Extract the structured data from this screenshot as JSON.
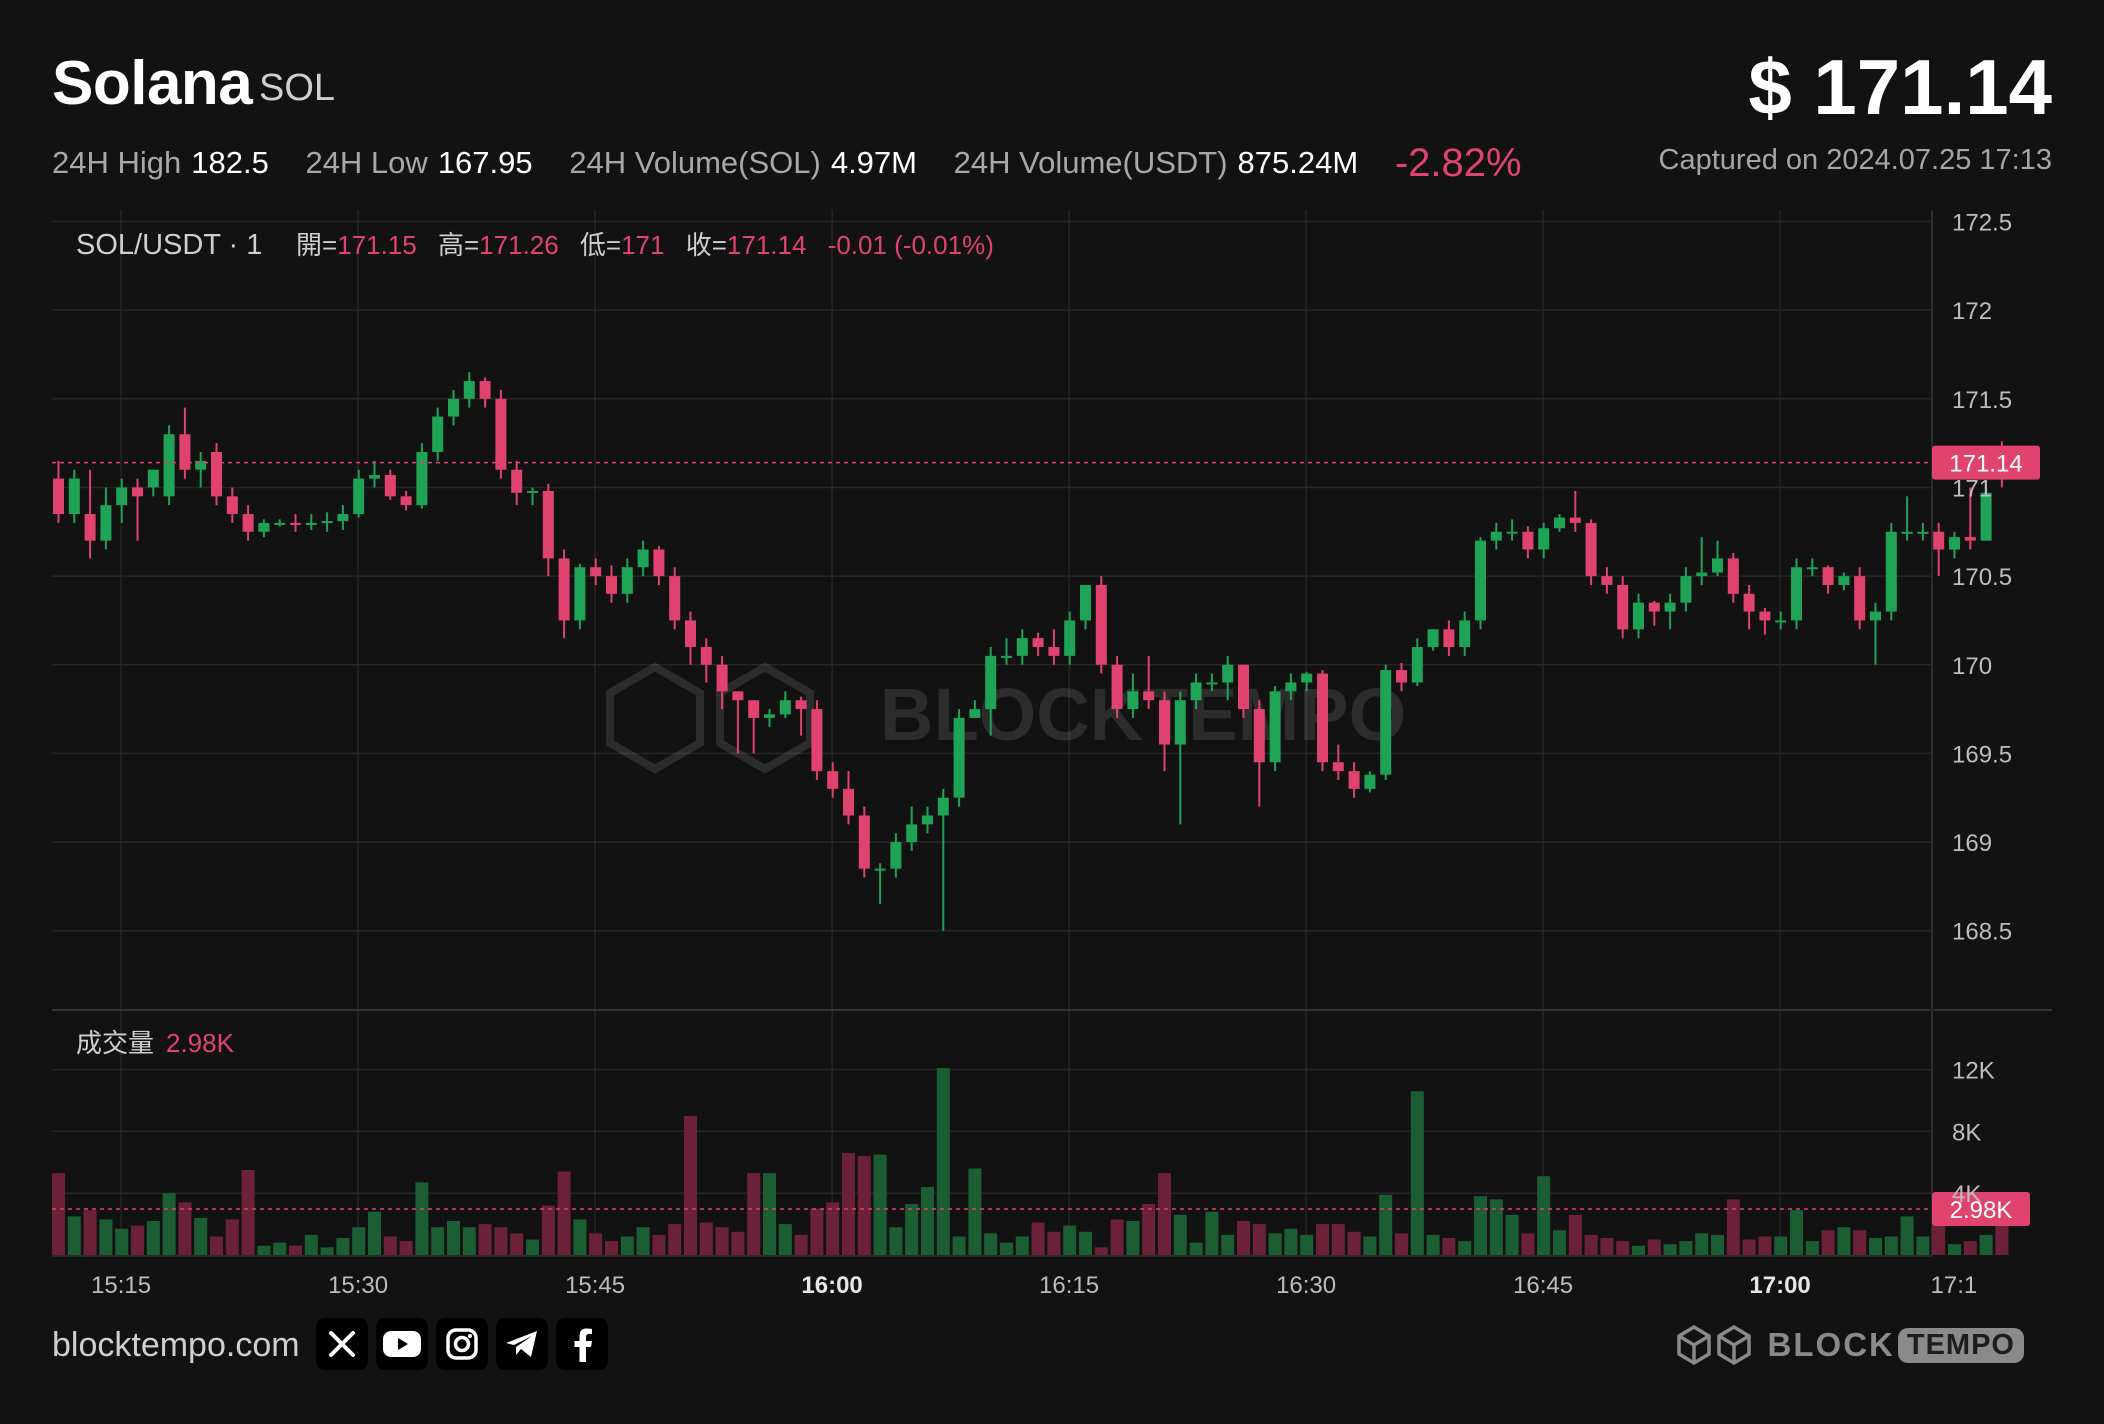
{
  "header": {
    "name": "Solana",
    "symbol": "SOL",
    "price": "$ 171.14",
    "stats": [
      {
        "label": "24H High",
        "value": "182.5"
      },
      {
        "label": "24H Low",
        "value": "167.95"
      },
      {
        "label": "24H Volume(SOL)",
        "value": "4.97M"
      },
      {
        "label": "24H Volume(USDT)",
        "value": "875.24M"
      }
    ],
    "change": "-2.82%",
    "captured": "Captured on 2024.07.25 17:13"
  },
  "legend": {
    "pair": "SOL/USDT · 1",
    "open_label": "開=",
    "open": "171.15",
    "high_label": "高=",
    "high": "171.26",
    "low_label": "低=",
    "low": "171",
    "close_label": "收=",
    "close": "171.14",
    "change": "-0.01 (-0.01%)"
  },
  "volume_legend": {
    "label": "成交量",
    "value": "2.98K"
  },
  "colors": {
    "up": "#1fa356",
    "down": "#e0436e",
    "up_volume": "#1c5e33",
    "down_volume": "#6b2239",
    "background": "#121212",
    "grid": "#262626"
  },
  "footer": {
    "site": "blocktempo.com",
    "social_icons": [
      "x-icon",
      "youtube-icon",
      "instagram-icon",
      "telegram-icon",
      "facebook-icon"
    ],
    "brand_block": "BLOCK",
    "brand_tempo": "TEMPO"
  },
  "watermark": "BLOCKTEMPO",
  "chart_data": {
    "type": "candlestick",
    "price_axis": {
      "ticks": [
        168.5,
        169,
        169.5,
        170,
        170.5,
        171,
        171.5,
        172,
        172.5
      ],
      "range": [
        168.0,
        172.5
      ]
    },
    "volume_axis": {
      "tick_labels": [
        "4K",
        "8K",
        "12K"
      ],
      "tick_values": [
        4000,
        8000,
        12000
      ],
      "max": 14800
    },
    "time_labels": [
      "15:15",
      "15:30",
      "15:45",
      "16:00",
      "16:15",
      "16:30",
      "16:45",
      "17:00",
      "17:1"
    ],
    "bold_time_labels": [
      "16:00",
      "17:00"
    ],
    "time_label_indices": [
      2,
      17,
      32,
      47,
      62,
      77,
      92,
      107,
      118
    ],
    "last_price_label": "171.14",
    "last_volume_label": "2.98K",
    "last_volume": 2980,
    "candles": [
      [
        171.05,
        170.85,
        171.15,
        170.8,
        5300
      ],
      [
        170.85,
        171.05,
        171.1,
        170.8,
        2500
      ],
      [
        170.85,
        170.7,
        171.1,
        170.6,
        2900
      ],
      [
        170.7,
        170.9,
        171.0,
        170.65,
        2300
      ],
      [
        170.9,
        171.0,
        171.05,
        170.8,
        1700
      ],
      [
        171.0,
        170.95,
        171.05,
        170.7,
        1900
      ],
      [
        171.0,
        171.1,
        171.1,
        170.95,
        2200
      ],
      [
        170.95,
        171.3,
        171.35,
        170.9,
        4000
      ],
      [
        171.3,
        171.1,
        171.45,
        171.05,
        3400
      ],
      [
        171.1,
        171.15,
        171.2,
        171.0,
        2400
      ],
      [
        171.2,
        170.95,
        171.25,
        170.9,
        1200
      ],
      [
        170.95,
        170.85,
        171.0,
        170.8,
        2300
      ],
      [
        170.85,
        170.75,
        170.9,
        170.7,
        5500
      ],
      [
        170.75,
        170.8,
        170.82,
        170.72,
        600
      ],
      [
        170.8,
        170.8,
        170.82,
        170.78,
        800
      ],
      [
        170.8,
        170.79,
        170.85,
        170.75,
        600
      ],
      [
        170.79,
        170.8,
        170.85,
        170.76,
        1300
      ],
      [
        170.8,
        170.81,
        170.86,
        170.75,
        500
      ],
      [
        170.81,
        170.85,
        170.9,
        170.76,
        1100
      ],
      [
        170.85,
        171.05,
        171.1,
        170.83,
        1800
      ],
      [
        171.05,
        171.07,
        171.15,
        171.0,
        2800
      ],
      [
        171.07,
        170.95,
        171.1,
        170.93,
        1200
      ],
      [
        170.95,
        170.9,
        170.98,
        170.87,
        900
      ],
      [
        170.9,
        171.2,
        171.25,
        170.88,
        4700
      ],
      [
        171.2,
        171.4,
        171.45,
        171.15,
        1800
      ],
      [
        171.4,
        171.5,
        171.55,
        171.35,
        2200
      ],
      [
        171.5,
        171.6,
        171.65,
        171.45,
        1800
      ],
      [
        171.6,
        171.5,
        171.62,
        171.45,
        2000
      ],
      [
        171.5,
        171.1,
        171.55,
        171.05,
        1800
      ],
      [
        171.1,
        170.97,
        171.15,
        170.9,
        1400
      ],
      [
        170.97,
        170.98,
        171.0,
        170.9,
        1000
      ],
      [
        170.98,
        170.6,
        171.02,
        170.5,
        3200
      ],
      [
        170.6,
        170.25,
        170.65,
        170.15,
        5400
      ],
      [
        170.25,
        170.55,
        170.57,
        170.2,
        2300
      ],
      [
        170.55,
        170.5,
        170.6,
        170.45,
        1400
      ],
      [
        170.5,
        170.4,
        170.56,
        170.35,
        900
      ],
      [
        170.4,
        170.55,
        170.6,
        170.35,
        1200
      ],
      [
        170.55,
        170.65,
        170.7,
        170.5,
        1800
      ],
      [
        170.65,
        170.5,
        170.67,
        170.45,
        1300
      ],
      [
        170.5,
        170.25,
        170.55,
        170.2,
        2000
      ],
      [
        170.25,
        170.1,
        170.3,
        170.0,
        9000
      ],
      [
        170.1,
        170.0,
        170.15,
        169.9,
        2100
      ],
      [
        170.0,
        169.85,
        170.05,
        169.75,
        1800
      ],
      [
        169.85,
        169.8,
        169.85,
        169.5,
        1500
      ],
      [
        169.8,
        169.7,
        169.8,
        169.5,
        5300
      ],
      [
        169.7,
        169.72,
        169.75,
        169.65,
        5300
      ],
      [
        169.72,
        169.8,
        169.85,
        169.7,
        2000
      ],
      [
        169.8,
        169.75,
        169.82,
        169.6,
        1300
      ],
      [
        169.75,
        169.4,
        169.8,
        169.35,
        3000
      ],
      [
        169.4,
        169.3,
        169.45,
        169.25,
        3400
      ],
      [
        169.3,
        169.15,
        169.4,
        169.1,
        6600
      ],
      [
        169.15,
        168.85,
        169.2,
        168.8,
        6400
      ],
      [
        168.85,
        168.85,
        168.88,
        168.65,
        6500
      ],
      [
        168.85,
        169.0,
        169.05,
        168.8,
        1800
      ],
      [
        169.0,
        169.1,
        169.2,
        168.95,
        3300
      ],
      [
        169.1,
        169.15,
        169.2,
        169.05,
        4400
      ],
      [
        169.15,
        169.25,
        169.3,
        168.5,
        12100
      ],
      [
        169.25,
        169.7,
        169.75,
        169.2,
        1200
      ],
      [
        169.7,
        169.75,
        169.8,
        169.7,
        5600
      ],
      [
        169.75,
        170.05,
        170.1,
        169.6,
        1400
      ],
      [
        170.05,
        170.05,
        170.15,
        170.0,
        800
      ],
      [
        170.05,
        170.15,
        170.2,
        170.0,
        1200
      ],
      [
        170.15,
        170.1,
        170.18,
        170.05,
        2100
      ],
      [
        170.1,
        170.05,
        170.2,
        170.0,
        1500
      ],
      [
        170.05,
        170.25,
        170.3,
        170.0,
        1900
      ],
      [
        170.25,
        170.45,
        170.45,
        170.2,
        1500
      ],
      [
        170.45,
        170.0,
        170.5,
        169.95,
        500
      ],
      [
        170.0,
        169.75,
        170.05,
        169.7,
        2300
      ],
      [
        169.75,
        169.85,
        169.95,
        169.7,
        2200
      ],
      [
        169.85,
        169.8,
        170.05,
        169.75,
        3300
      ],
      [
        169.8,
        169.55,
        169.85,
        169.4,
        5300
      ],
      [
        169.55,
        169.8,
        169.85,
        169.1,
        2600
      ],
      [
        169.8,
        169.9,
        169.95,
        169.75,
        800
      ],
      [
        169.9,
        169.9,
        169.95,
        169.85,
        2800
      ],
      [
        169.9,
        170.0,
        170.05,
        169.8,
        1300
      ],
      [
        170.0,
        169.75,
        170.0,
        169.7,
        2200
      ],
      [
        169.75,
        169.45,
        169.8,
        169.2,
        2000
      ],
      [
        169.45,
        169.85,
        169.88,
        169.4,
        1400
      ],
      [
        169.85,
        169.9,
        169.95,
        169.8,
        1700
      ],
      [
        169.9,
        169.95,
        169.96,
        169.85,
        1300
      ],
      [
        169.95,
        169.45,
        169.97,
        169.4,
        2000
      ],
      [
        169.45,
        169.4,
        169.55,
        169.35,
        2000
      ],
      [
        169.4,
        169.3,
        169.45,
        169.25,
        1500
      ],
      [
        169.3,
        169.38,
        169.4,
        169.28,
        1200
      ],
      [
        169.38,
        169.97,
        170.0,
        169.35,
        3900
      ],
      [
        169.97,
        169.9,
        170.01,
        169.85,
        1400
      ],
      [
        169.9,
        170.1,
        170.15,
        169.88,
        10600
      ],
      [
        170.1,
        170.2,
        170.2,
        170.08,
        1300
      ],
      [
        170.2,
        170.1,
        170.25,
        170.05,
        1100
      ],
      [
        170.1,
        170.25,
        170.3,
        170.05,
        900
      ],
      [
        170.25,
        170.7,
        170.72,
        170.2,
        3800
      ],
      [
        170.7,
        170.75,
        170.8,
        170.65,
        3600
      ],
      [
        170.75,
        170.75,
        170.82,
        170.7,
        2600
      ],
      [
        170.75,
        170.65,
        170.78,
        170.6,
        1400
      ],
      [
        170.65,
        170.77,
        170.8,
        170.6,
        5100
      ],
      [
        170.77,
        170.83,
        170.85,
        170.75,
        1600
      ],
      [
        170.83,
        170.8,
        170.98,
        170.75,
        2600
      ],
      [
        170.8,
        170.5,
        170.82,
        170.45,
        1300
      ],
      [
        170.5,
        170.45,
        170.55,
        170.4,
        1100
      ],
      [
        170.45,
        170.2,
        170.5,
        170.15,
        900
      ],
      [
        170.2,
        170.35,
        170.4,
        170.15,
        600
      ],
      [
        170.35,
        170.3,
        170.36,
        170.22,
        1000
      ],
      [
        170.3,
        170.35,
        170.4,
        170.2,
        700
      ],
      [
        170.35,
        170.5,
        170.55,
        170.3,
        900
      ],
      [
        170.5,
        170.52,
        170.72,
        170.45,
        1400
      ],
      [
        170.52,
        170.6,
        170.7,
        170.5,
        1300
      ],
      [
        170.6,
        170.4,
        170.63,
        170.35,
        3600
      ],
      [
        170.4,
        170.3,
        170.45,
        170.2,
        1000
      ],
      [
        170.3,
        170.25,
        170.32,
        170.17,
        1200
      ],
      [
        170.25,
        170.25,
        170.3,
        170.2,
        1200
      ],
      [
        170.25,
        170.55,
        170.6,
        170.2,
        2900
      ],
      [
        170.55,
        170.55,
        170.6,
        170.5,
        900
      ],
      [
        170.55,
        170.45,
        170.56,
        170.4,
        1600
      ],
      [
        170.45,
        170.5,
        170.52,
        170.42,
        1800
      ],
      [
        170.5,
        170.25,
        170.55,
        170.2,
        1600
      ],
      [
        170.25,
        170.3,
        170.35,
        170.0,
        1100
      ],
      [
        170.3,
        170.75,
        170.8,
        170.25,
        1200
      ],
      [
        170.75,
        170.75,
        170.95,
        170.7,
        2500
      ],
      [
        170.75,
        170.75,
        170.8,
        170.7,
        1200
      ],
      [
        170.75,
        170.65,
        170.8,
        170.5,
        2500
      ],
      [
        170.65,
        170.72,
        170.75,
        170.6,
        700
      ],
      [
        170.72,
        170.7,
        171.0,
        170.65,
        900
      ],
      [
        170.7,
        170.97,
        171.0,
        170.7,
        1300
      ],
      [
        171.15,
        171.14,
        171.26,
        171.0,
        2980
      ]
    ]
  }
}
